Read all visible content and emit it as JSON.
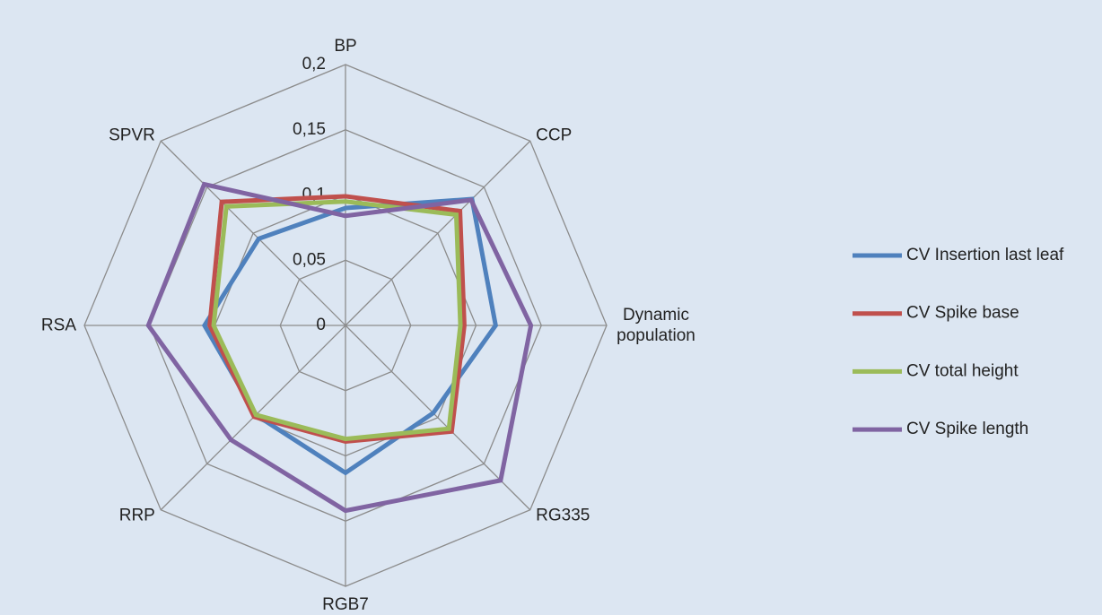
{
  "chart_data": {
    "type": "radar",
    "categories": [
      "BP",
      "CCP",
      "Dynamic population",
      "RG335",
      "RGB7",
      "RRP",
      "RSA",
      "SPVR"
    ],
    "series": [
      {
        "name": "CV Insertion last leaf",
        "color": "#4f81bd",
        "values": [
          0.09,
          0.137,
          0.115,
          0.095,
          0.113,
          0.097,
          0.108,
          0.094
        ]
      },
      {
        "name": "CV Spike base",
        "color": "#c0504d",
        "values": [
          0.099,
          0.124,
          0.091,
          0.115,
          0.089,
          0.099,
          0.104,
          0.134
        ]
      },
      {
        "name": "CV total height",
        "color": "#9bbb59",
        "values": [
          0.095,
          0.12,
          0.088,
          0.112,
          0.087,
          0.097,
          0.101,
          0.129
        ]
      },
      {
        "name": "CV Spike length",
        "color": "#8064a2",
        "values": [
          0.084,
          0.136,
          0.142,
          0.168,
          0.142,
          0.124,
          0.151,
          0.153
        ]
      }
    ],
    "ylim": [
      0,
      0.2
    ],
    "yticks": [
      0,
      {
        "value": 0.05,
        "label": "0,05"
      },
      {
        "value": 0.1,
        "label": "0,1"
      },
      {
        "value": 0.15,
        "label": "0,15"
      },
      {
        "value": 0.2,
        "label": "0,2"
      }
    ],
    "grid": true,
    "legend": "right"
  }
}
